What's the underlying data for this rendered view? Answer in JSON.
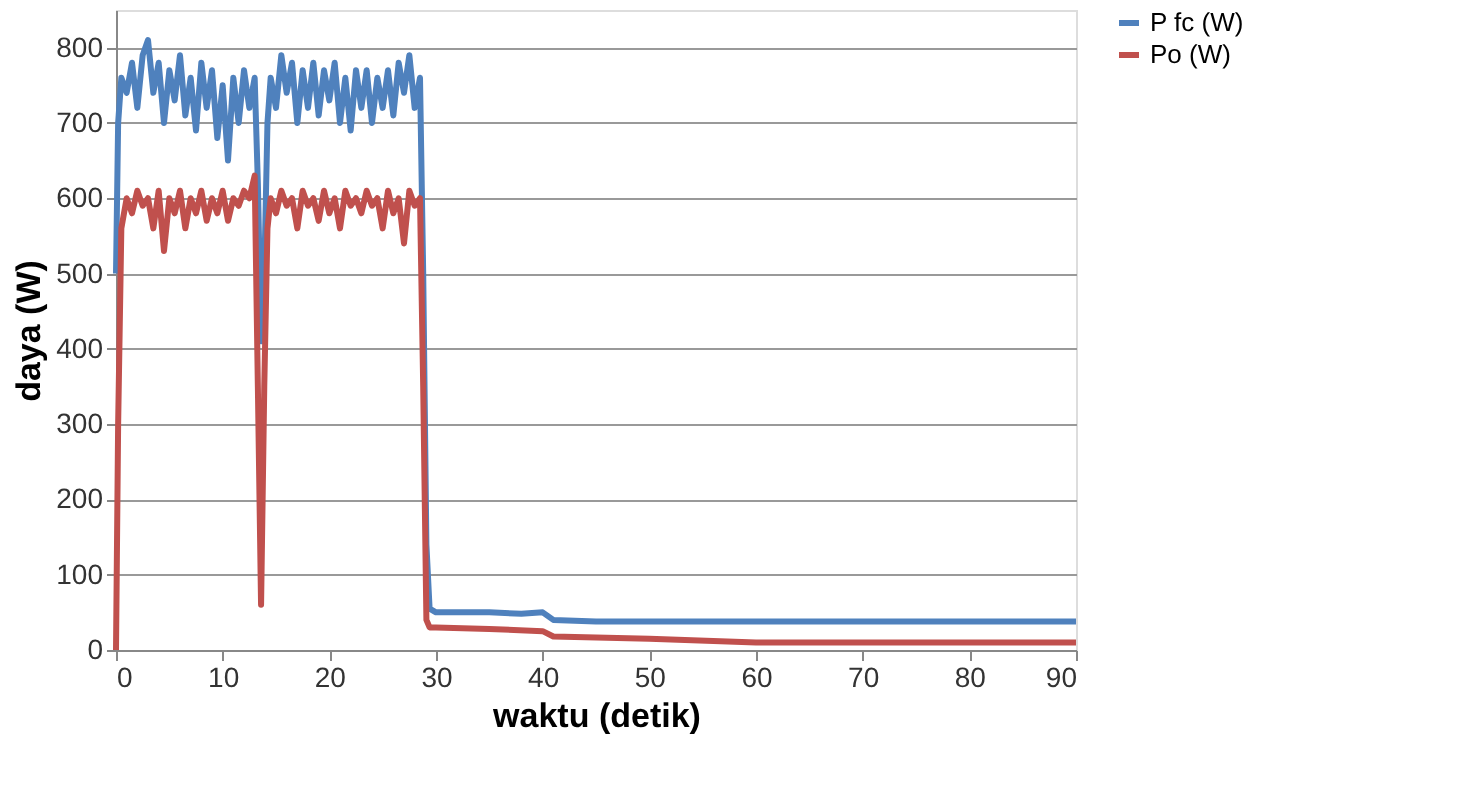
{
  "chart_data": {
    "type": "line",
    "xlabel": "waktu (detik)",
    "ylabel": "daya (W)",
    "xlim": [
      0,
      90
    ],
    "xticks": [
      0,
      10,
      20,
      30,
      40,
      50,
      60,
      70,
      80,
      90
    ],
    "ylim": [
      0,
      850
    ],
    "yticks": [
      0,
      100,
      200,
      300,
      400,
      500,
      600,
      700,
      800
    ],
    "grid": "y",
    "legend": "right",
    "marker": "none",
    "line_style": "solid",
    "series": [
      {
        "name": "P fc (W)",
        "color": "#4f81bd",
        "x": [
          0,
          0.2,
          0.5,
          1,
          1.5,
          2,
          2.5,
          3,
          3.5,
          4,
          4.5,
          5,
          5.5,
          6,
          6.5,
          7,
          7.5,
          8,
          8.5,
          9,
          9.5,
          10,
          10.5,
          11,
          11.5,
          12,
          12.5,
          13,
          13.3,
          13.6,
          13.9,
          14.2,
          14.5,
          15,
          15.5,
          16,
          16.5,
          17,
          17.5,
          18,
          18.5,
          19,
          19.5,
          20,
          20.5,
          21,
          21.5,
          22,
          22.5,
          23,
          23.5,
          24,
          24.5,
          25,
          25.5,
          26,
          26.5,
          27,
          27.5,
          28,
          28.5,
          28.8,
          29.1,
          29.4,
          30,
          35,
          38,
          40,
          41,
          45,
          50,
          60,
          70,
          80,
          90
        ],
        "values": [
          500,
          700,
          760,
          740,
          780,
          720,
          790,
          810,
          740,
          780,
          700,
          770,
          730,
          790,
          710,
          760,
          690,
          780,
          720,
          770,
          680,
          750,
          650,
          760,
          700,
          770,
          720,
          760,
          620,
          410,
          500,
          700,
          760,
          720,
          790,
          740,
          780,
          700,
          770,
          720,
          780,
          710,
          770,
          730,
          780,
          700,
          760,
          690,
          770,
          720,
          770,
          700,
          760,
          720,
          770,
          710,
          780,
          740,
          790,
          720,
          760,
          500,
          140,
          55,
          50,
          50,
          48,
          50,
          40,
          38,
          38,
          38,
          38,
          38,
          38
        ]
      },
      {
        "name": "Po (W)",
        "color": "#c0504d",
        "x": [
          0,
          0.2,
          0.5,
          1,
          1.5,
          2,
          2.5,
          3,
          3.5,
          4,
          4.5,
          5,
          5.5,
          6,
          6.5,
          7,
          7.5,
          8,
          8.5,
          9,
          9.5,
          10,
          10.5,
          11,
          11.5,
          12,
          12.5,
          13,
          13.3,
          13.6,
          13.9,
          14.2,
          14.5,
          15,
          15.5,
          16,
          16.5,
          17,
          17.5,
          18,
          18.5,
          19,
          19.5,
          20,
          20.5,
          21,
          21.5,
          22,
          22.5,
          23,
          23.5,
          24,
          24.5,
          25,
          25.5,
          26,
          26.5,
          27,
          27.5,
          28,
          28.5,
          28.8,
          29.1,
          29.4,
          30,
          35,
          40,
          41,
          50,
          56,
          60,
          70,
          80,
          90
        ],
        "values": [
          0,
          300,
          560,
          600,
          580,
          610,
          590,
          600,
          560,
          610,
          530,
          600,
          580,
          610,
          560,
          600,
          580,
          610,
          570,
          600,
          580,
          610,
          570,
          600,
          590,
          610,
          600,
          630,
          350,
          60,
          350,
          560,
          600,
          580,
          610,
          590,
          600,
          560,
          610,
          590,
          600,
          570,
          610,
          580,
          600,
          560,
          610,
          590,
          600,
          580,
          610,
          590,
          600,
          560,
          610,
          580,
          600,
          540,
          610,
          590,
          600,
          350,
          40,
          30,
          30,
          28,
          25,
          18,
          15,
          12,
          10,
          10,
          10,
          10
        ]
      }
    ]
  }
}
